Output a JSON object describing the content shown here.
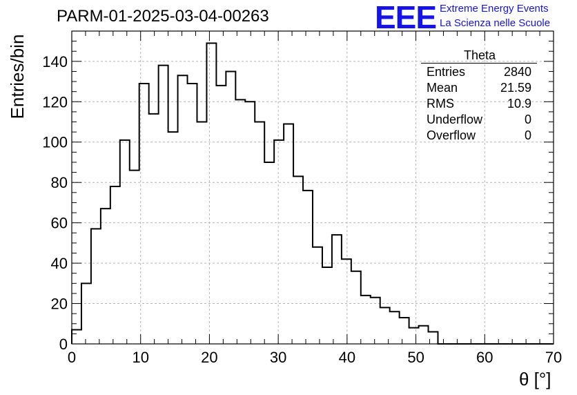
{
  "chart_data": {
    "type": "histogram",
    "title": "PARM-01-2025-03-04-00263",
    "xlabel": "θ [°]",
    "ylabel": "Entries/bin",
    "xlim": [
      0,
      70
    ],
    "ylim": [
      0,
      155
    ],
    "grid": true,
    "bin_width": 1.4,
    "x_ticks": [
      0,
      10,
      20,
      30,
      40,
      50,
      60,
      70
    ],
    "y_ticks": [
      0,
      20,
      40,
      60,
      80,
      100,
      120,
      140
    ],
    "values": [
      7,
      30,
      57,
      67,
      78,
      101,
      86,
      129,
      114,
      138,
      105,
      133,
      129,
      110,
      149,
      128,
      135,
      121,
      120,
      110,
      90,
      101,
      109,
      83,
      76,
      48,
      38,
      54,
      42,
      36,
      24,
      23,
      18,
      16,
      13,
      8,
      9,
      6,
      0,
      0,
      0,
      0,
      0,
      0,
      0,
      0,
      0,
      0,
      0,
      0
    ],
    "stats_box": {
      "name": "Theta",
      "rows": [
        {
          "label": "Entries",
          "value": "2840"
        },
        {
          "label": "Mean",
          "value": "21.59"
        },
        {
          "label": "RMS",
          "value": "10.9"
        },
        {
          "label": "Underflow",
          "value": "0"
        },
        {
          "label": "Overflow",
          "value": "0"
        }
      ]
    }
  },
  "logo": {
    "mark": "EEE",
    "line1": "Extreme Energy Events",
    "line2": "La Scienza nelle Scuole",
    "color": "#1414e6"
  }
}
